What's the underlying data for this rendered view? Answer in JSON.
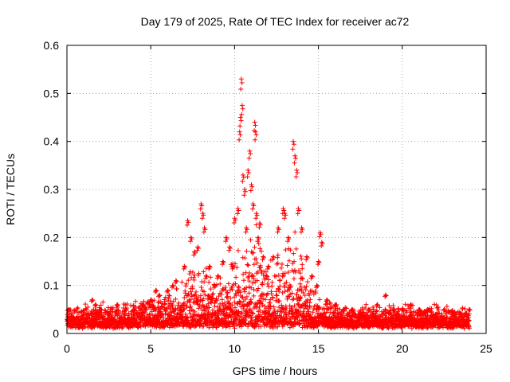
{
  "chart_data": {
    "type": "scatter",
    "title": "Day 179 of 2025, Rate Of TEC Index for receiver ac72",
    "xlabel": "GPS time / hours",
    "ylabel": "ROTI / TECUs",
    "xlim": [
      0,
      25
    ],
    "ylim": [
      0,
      0.6
    ],
    "xticks": [
      "0",
      "5",
      "10",
      "15",
      "20",
      "25"
    ],
    "yticks": [
      "0",
      "0.1",
      "0.2",
      "0.3",
      "0.4",
      "0.5",
      "0.6"
    ],
    "grid": true,
    "marker": "+",
    "color": "#ff0000",
    "series": [
      {
        "x": [
          0.1,
          0.5,
          1.0,
          1.5,
          1.7,
          2.0,
          2.5,
          3.0,
          3.5,
          4.0,
          4.5,
          5.0,
          5.3,
          5.5,
          6.0,
          6.3,
          6.5,
          7.0,
          7.2,
          7.4,
          7.6,
          7.8,
          8.0,
          8.1,
          8.2,
          8.3,
          8.5,
          8.8,
          9.0,
          9.3,
          9.5,
          9.7,
          9.9,
          10.0,
          10.2,
          10.3,
          10.35,
          10.4,
          10.45,
          10.5,
          10.6,
          10.7,
          10.8,
          10.9,
          11.0,
          11.1,
          11.2,
          11.25,
          11.3,
          11.4,
          11.5,
          11.7,
          11.9,
          12.0,
          12.3,
          12.6,
          12.9,
          13.0,
          13.2,
          13.5,
          13.6,
          13.7,
          13.8,
          14.0,
          14.3,
          14.6,
          14.9,
          15.0,
          15.1,
          15.2,
          15.5,
          16.0,
          16.5,
          17.0,
          17.5,
          18.0,
          18.5,
          19.0,
          19.5,
          20.0,
          20.5,
          21.0,
          21.5,
          22.0,
          22.5,
          23.0,
          23.5,
          24.0
        ],
        "y": [
          0.05,
          0.03,
          0.04,
          0.07,
          0.06,
          0.05,
          0.04,
          0.06,
          0.05,
          0.05,
          0.06,
          0.07,
          0.09,
          0.08,
          0.09,
          0.1,
          0.11,
          0.14,
          0.235,
          0.2,
          0.17,
          0.18,
          0.27,
          0.25,
          0.22,
          0.12,
          0.14,
          0.1,
          0.12,
          0.15,
          0.2,
          0.18,
          0.14,
          0.24,
          0.26,
          0.42,
          0.45,
          0.53,
          0.475,
          0.33,
          0.3,
          0.22,
          0.34,
          0.38,
          0.31,
          0.27,
          0.44,
          0.42,
          0.25,
          0.2,
          0.23,
          0.16,
          0.12,
          0.14,
          0.16,
          0.22,
          0.26,
          0.25,
          0.2,
          0.4,
          0.37,
          0.34,
          0.26,
          0.22,
          0.16,
          0.12,
          0.1,
          0.15,
          0.21,
          0.19,
          0.07,
          0.06,
          0.05,
          0.05,
          0.04,
          0.05,
          0.06,
          0.08,
          0.05,
          0.05,
          0.06,
          0.05,
          0.05,
          0.04,
          0.05,
          0.04,
          0.04,
          0.05
        ]
      }
    ],
    "envelope": {
      "x": [
        0,
        1,
        2,
        3,
        4,
        5,
        5.5,
        6,
        6.5,
        7,
        7.2,
        7.5,
        7.8,
        8,
        8.2,
        8.5,
        9,
        9.3,
        9.6,
        10,
        10.3,
        10.6,
        11,
        11.3,
        11.7,
        12,
        12.3,
        12.6,
        13,
        13.3,
        13.6,
        14,
        14.3,
        14.6,
        15,
        15.3,
        16,
        17,
        18,
        19,
        20,
        21,
        22,
        23,
        24
      ],
      "y": [
        0.035,
        0.04,
        0.045,
        0.04,
        0.045,
        0.055,
        0.06,
        0.065,
        0.07,
        0.1,
        0.13,
        0.11,
        0.12,
        0.15,
        0.14,
        0.1,
        0.09,
        0.11,
        0.12,
        0.14,
        0.16,
        0.15,
        0.17,
        0.2,
        0.15,
        0.11,
        0.13,
        0.16,
        0.17,
        0.15,
        0.19,
        0.13,
        0.09,
        0.08,
        0.06,
        0.05,
        0.045,
        0.04,
        0.04,
        0.04,
        0.04,
        0.04,
        0.04,
        0.035,
        0.035
      ]
    }
  }
}
